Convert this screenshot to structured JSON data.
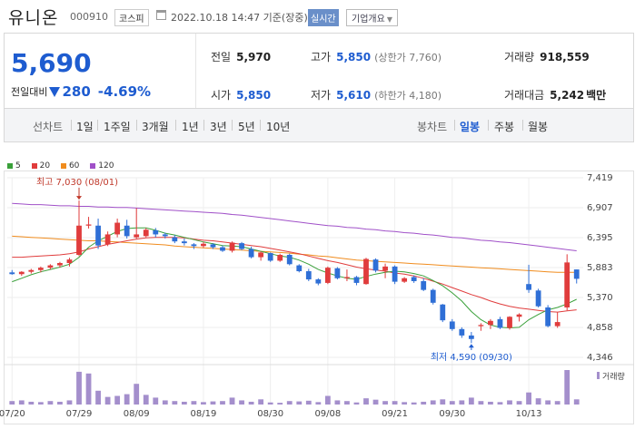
{
  "header": {
    "name": "유니온",
    "code": "000910",
    "market": "코스피",
    "datetime": "2022.10.18 14:47 기준(장중)",
    "realtime": "실시간",
    "info": "기업개요"
  },
  "quote": {
    "price": "5,690",
    "change_label": "전일대비",
    "change": "280",
    "change_pct": "-4.69%",
    "prev_close_label": "전일",
    "prev_close": "5,970",
    "high_label": "고가",
    "high": "5,850",
    "upper_limit": "(상한가 7,760)",
    "volume_label": "거래량",
    "volume": "918,559",
    "open_label": "시가",
    "open": "5,850",
    "low_label": "저가",
    "low": "5,610",
    "lower_limit": "(하한가 4,180)",
    "amount_label": "거래대금",
    "amount": "5,242",
    "amount_unit": "백만"
  },
  "toolbar": {
    "line_chart": "선차트",
    "periods": [
      "1일",
      "1주일",
      "3개월",
      "1년",
      "3년",
      "5년",
      "10년"
    ],
    "candle_chart": "봉차트",
    "candle_periods": [
      "일봉",
      "주봉",
      "월봉"
    ],
    "active_candle": "일봉"
  },
  "legend": [
    {
      "label": "5",
      "color": "#3aa03a"
    },
    {
      "label": "20",
      "color": "#e03c3c"
    },
    {
      "label": "60",
      "color": "#f08c1e"
    },
    {
      "label": "120",
      "color": "#a050c8"
    }
  ],
  "chart_data": {
    "type": "candlestick",
    "y_ticks": [
      "7,419",
      "6,907",
      "6,395",
      "5,883",
      "5,370",
      "4,858",
      "4,346"
    ],
    "y_tick_values": [
      7419,
      6907,
      6395,
      5883,
      5370,
      4858,
      4346
    ],
    "x_labels": [
      "07/20",
      "07/29",
      "08/09",
      "08/19",
      "08/30",
      "09/08",
      "09/21",
      "09/30",
      "10/13"
    ],
    "x_label_index": [
      0,
      7,
      13,
      20,
      27,
      33,
      40,
      46,
      54
    ],
    "high_annotation": "최고 7,030 (08/01)",
    "low_annotation": "최저 4,590 (09/30)",
    "volume_label": "거래량",
    "up_color": "#e03c3c",
    "down_color": "#2f6fd6",
    "candles": [
      [
        5800,
        5840,
        5760,
        5770
      ],
      [
        5770,
        5820,
        5740,
        5810
      ],
      [
        5810,
        5860,
        5780,
        5840
      ],
      [
        5840,
        5900,
        5800,
        5880
      ],
      [
        5880,
        5940,
        5850,
        5920
      ],
      [
        5920,
        5980,
        5880,
        5960
      ],
      [
        5960,
        6050,
        5900,
        6020
      ],
      [
        6100,
        7030,
        6080,
        6600
      ],
      [
        6600,
        6750,
        6550,
        6620
      ],
      [
        6600,
        6720,
        6200,
        6260
      ],
      [
        6280,
        6500,
        6250,
        6450
      ],
      [
        6450,
        6720,
        6400,
        6650
      ],
      [
        6600,
        6700,
        6380,
        6420
      ],
      [
        6400,
        6900,
        6380,
        6450
      ],
      [
        6420,
        6560,
        6400,
        6530
      ],
      [
        6520,
        6560,
        6400,
        6450
      ],
      [
        6450,
        6480,
        6380,
        6420
      ],
      [
        6400,
        6440,
        6300,
        6330
      ],
      [
        6330,
        6380,
        6260,
        6300
      ],
      [
        6280,
        6300,
        6200,
        6250
      ],
      [
        6250,
        6320,
        6220,
        6290
      ],
      [
        6280,
        6300,
        6200,
        6230
      ],
      [
        6230,
        6260,
        6150,
        6170
      ],
      [
        6170,
        6330,
        6140,
        6310
      ],
      [
        6300,
        6320,
        6180,
        6200
      ],
      [
        6200,
        6240,
        6040,
        6060
      ],
      [
        6060,
        6160,
        6000,
        6140
      ],
      [
        6130,
        6140,
        5980,
        6000
      ],
      [
        6000,
        6120,
        5980,
        6100
      ],
      [
        6100,
        6120,
        5920,
        5940
      ],
      [
        5920,
        5940,
        5800,
        5820
      ],
      [
        5820,
        5860,
        5650,
        5680
      ],
      [
        5680,
        5700,
        5580,
        5610
      ],
      [
        5620,
        5900,
        5600,
        5880
      ],
      [
        5870,
        5890,
        5680,
        5700
      ],
      [
        5700,
        5850,
        5650,
        5720
      ],
      [
        5720,
        5740,
        5580,
        5620
      ],
      [
        5600,
        6050,
        5590,
        6030
      ],
      [
        6020,
        6040,
        5800,
        5830
      ],
      [
        5830,
        5950,
        5700,
        5900
      ],
      [
        5900,
        5920,
        5600,
        5640
      ],
      [
        5640,
        5720,
        5620,
        5700
      ],
      [
        5720,
        5750,
        5620,
        5650
      ],
      [
        5650,
        5700,
        5480,
        5500
      ],
      [
        5500,
        5520,
        5250,
        5280
      ],
      [
        5250,
        5260,
        4950,
        4980
      ],
      [
        4960,
        5000,
        4800,
        4830
      ],
      [
        4830,
        4860,
        4680,
        4720
      ],
      [
        4720,
        4780,
        4590,
        4660
      ],
      [
        4880,
        4930,
        4800,
        4900
      ],
      [
        4900,
        5000,
        4830,
        4970
      ],
      [
        5000,
        5040,
        4830,
        4850
      ],
      [
        4850,
        5050,
        4820,
        5040
      ],
      [
        5040,
        5100,
        4960,
        5080
      ],
      [
        5600,
        5930,
        5450,
        5500
      ],
      [
        5490,
        5520,
        5200,
        5220
      ],
      [
        5200,
        5240,
        4860,
        4880
      ],
      [
        4880,
        5120,
        4850,
        4950
      ],
      [
        5200,
        6110,
        5150,
        5970
      ],
      [
        5850,
        5850,
        5610,
        5690
      ]
    ],
    "ma5": [
      5640,
      5700,
      5760,
      5810,
      5850,
      5890,
      5940,
      6060,
      6230,
      6340,
      6420,
      6500,
      6550,
      6560,
      6560,
      6520,
      6470,
      6440,
      6400,
      6360,
      6320,
      6290,
      6260,
      6250,
      6240,
      6200,
      6160,
      6120,
      6080,
      6060,
      6010,
      5940,
      5850,
      5790,
      5740,
      5700,
      5680,
      5730,
      5770,
      5800,
      5820,
      5810,
      5780,
      5740,
      5660,
      5570,
      5450,
      5310,
      5130,
      4990,
      4900,
      4860,
      4850,
      4860,
      4990,
      5080,
      5160,
      5200,
      5260,
      5340
    ],
    "ma20": [
      6060,
      6060,
      6070,
      6080,
      6090,
      6100,
      6120,
      6150,
      6200,
      6240,
      6280,
      6310,
      6340,
      6370,
      6390,
      6400,
      6400,
      6400,
      6390,
      6370,
      6350,
      6340,
      6320,
      6300,
      6280,
      6260,
      6240,
      6210,
      6180,
      6150,
      6120,
      6080,
      6040,
      6000,
      5970,
      5930,
      5890,
      5860,
      5840,
      5820,
      5790,
      5770,
      5740,
      5700,
      5650,
      5600,
      5540,
      5480,
      5420,
      5370,
      5310,
      5260,
      5220,
      5190,
      5170,
      5150,
      5130,
      5120,
      5140,
      5160
    ],
    "ma60": [
      6420,
      6410,
      6400,
      6390,
      6380,
      6370,
      6360,
      6350,
      6340,
      6340,
      6330,
      6320,
      6310,
      6300,
      6290,
      6280,
      6270,
      6250,
      6240,
      6230,
      6220,
      6210,
      6200,
      6190,
      6180,
      6170,
      6160,
      6150,
      6140,
      6130,
      6110,
      6100,
      6080,
      6070,
      6050,
      6030,
      6010,
      6000,
      5990,
      5980,
      5970,
      5960,
      5950,
      5940,
      5930,
      5920,
      5910,
      5900,
      5890,
      5880,
      5870,
      5860,
      5850,
      5840,
      5830,
      5820,
      5810,
      5800,
      5800,
      5800
    ],
    "ma120": [
      6980,
      6970,
      6960,
      6960,
      6950,
      6940,
      6940,
      6930,
      6930,
      6920,
      6920,
      6910,
      6910,
      6900,
      6890,
      6880,
      6870,
      6860,
      6850,
      6840,
      6830,
      6820,
      6810,
      6790,
      6780,
      6760,
      6740,
      6720,
      6700,
      6680,
      6660,
      6640,
      6620,
      6600,
      6590,
      6570,
      6560,
      6540,
      6530,
      6510,
      6500,
      6480,
      6470,
      6450,
      6440,
      6420,
      6400,
      6390,
      6370,
      6350,
      6340,
      6320,
      6310,
      6290,
      6270,
      6250,
      6230,
      6210,
      6190,
      6170
    ],
    "volume": [
      0.1,
      0.12,
      0.08,
      0.07,
      0.1,
      0.08,
      0.12,
      0.95,
      0.9,
      0.4,
      0.22,
      0.25,
      0.3,
      0.6,
      0.28,
      0.2,
      0.12,
      0.1,
      0.08,
      0.1,
      0.07,
      0.09,
      0.1,
      0.2,
      0.12,
      0.08,
      0.15,
      0.06,
      0.05,
      0.1,
      0.09,
      0.11,
      0.07,
      0.25,
      0.12,
      0.1,
      0.06,
      0.18,
      0.14,
      0.1,
      0.1,
      0.07,
      0.06,
      0.08,
      0.12,
      0.15,
      0.1,
      0.12,
      0.2,
      0.1,
      0.08,
      0.07,
      0.12,
      0.1,
      0.35,
      0.18,
      0.12,
      0.1,
      1.0,
      0.15
    ]
  }
}
